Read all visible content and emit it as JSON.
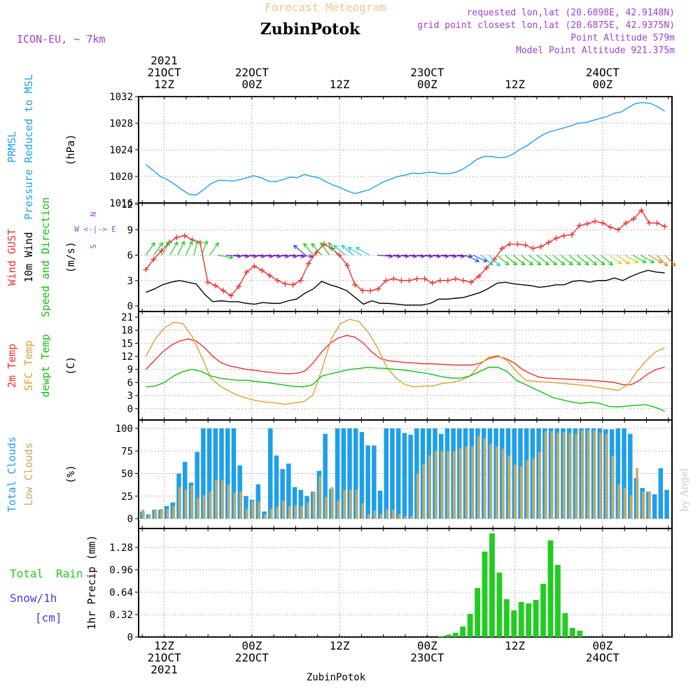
{
  "header": {
    "model": "ICON-EU, ~ 7km",
    "subtitle": "Forecast Meteogram",
    "station": "ZubinPotok",
    "requested": "requested lon,lat (20.6898E, 42.9148N)",
    "closest": "grid point closest lon,lat (20.6875E, 42.9375N)",
    "altitude": "Point Altitude 579m",
    "model_altitude": "Model Point Altitude 921.375m",
    "credit": "by Angel",
    "footer_station": "ZubinPotok"
  },
  "colors": {
    "pressure": "#1E9FEB",
    "gust": "#F03030",
    "wind": "#000000",
    "temp2m": "#F03030",
    "sfc": "#E0A030",
    "dewpt": "#10C010",
    "cloud_total": "#1E9FEB",
    "cloud_low": "#C8A860",
    "rain": "#22CC22",
    "snow": "#4040E0",
    "purple": "#A040D0",
    "grid": "#888888",
    "frame": "#000000"
  },
  "time_axis": {
    "top_labels": [
      {
        "h": 12,
        "lines": [
          "2021",
          "21OCT",
          "12Z"
        ]
      },
      {
        "h": 24,
        "lines": [
          "22OCT",
          "00Z"
        ]
      },
      {
        "h": 36,
        "lines": [
          "12Z"
        ]
      },
      {
        "h": 48,
        "lines": [
          "23OCT",
          "00Z"
        ]
      },
      {
        "h": 60,
        "lines": [
          "12Z"
        ]
      },
      {
        "h": 72,
        "lines": [
          "24OCT",
          "00Z"
        ]
      }
    ],
    "bottom_labels": [
      {
        "h": 12,
        "lines": [
          "12Z",
          "21OCT",
          "2021"
        ]
      },
      {
        "h": 24,
        "lines": [
          "00Z",
          "22OCT"
        ]
      },
      {
        "h": 36,
        "lines": [
          "12Z"
        ]
      },
      {
        "h": 48,
        "lines": [
          "00Z",
          "23OCT"
        ]
      },
      {
        "h": 60,
        "lines": [
          "12Z"
        ]
      },
      {
        "h": 72,
        "lines": [
          "00Z",
          "24OCT"
        ]
      }
    ]
  },
  "chart_data": [
    {
      "type": "line",
      "id": "pressure",
      "title": "PRMSL Pressure Reduced to MSL",
      "label_lines": [
        "PRMSL",
        "Pressure Reduced to MSL"
      ],
      "ylabel": "(hPa)",
      "ylim": [
        1016,
        1032
      ],
      "yticks": [
        1016,
        1020,
        1024,
        1028,
        1032
      ],
      "series": [
        {
          "name": "PRMSL",
          "values": [
            1021.8,
            1020.9,
            1020.0,
            1019.5,
            1018.8,
            1018.0,
            1017.3,
            1017.2,
            1018.0,
            1018.9,
            1019.4,
            1019.4,
            1019.3,
            1019.5,
            1019.8,
            1020.1,
            1019.8,
            1019.3,
            1019.2,
            1019.5,
            1019.9,
            1019.8,
            1020.3,
            1020.0,
            1019.8,
            1019.2,
            1018.7,
            1018.3,
            1017.8,
            1017.4,
            1017.7,
            1018.0,
            1018.6,
            1019.2,
            1019.6,
            1020.0,
            1020.2,
            1020.5,
            1020.4,
            1020.6,
            1020.6,
            1020.4,
            1020.4,
            1020.6,
            1021.1,
            1021.8,
            1022.6,
            1023.0,
            1023.0,
            1022.8,
            1022.9,
            1023.4,
            1024.1,
            1024.7,
            1025.5,
            1026.2,
            1026.7,
            1027.0,
            1027.3,
            1027.6,
            1028.0,
            1028.1,
            1028.4,
            1028.7,
            1029.0,
            1029.5,
            1029.7,
            1030.4,
            1031.0,
            1031.1,
            1031.0,
            1030.5,
            1029.8
          ]
        }
      ]
    },
    {
      "type": "line",
      "id": "wind",
      "title": "Wind GUST / 10m Wind Speed and Direction",
      "label_lines": [
        "Wind GUST",
        "10m Wind",
        "Speed and Direction"
      ],
      "ylabel": "(m/s)",
      "ylim": [
        0,
        12
      ],
      "yticks": [
        0,
        3,
        6,
        9,
        12
      ],
      "compass": [
        "N",
        "W <-|-> E",
        "S"
      ],
      "series": [
        {
          "name": "Wind GUST",
          "marker": "+",
          "values": [
            4.3,
            5.5,
            6.5,
            7.5,
            8.1,
            8.3,
            7.8,
            7.5,
            2.8,
            2.4,
            1.8,
            1.2,
            2.3,
            4.0,
            4.7,
            4.2,
            3.6,
            3.0,
            2.6,
            2.5,
            3.0,
            5.0,
            6.3,
            7.3,
            6.8,
            6.0,
            4.8,
            2.5,
            1.8,
            1.8,
            2.0,
            3.0,
            3.2,
            3.0,
            3.0,
            3.2,
            3.2,
            2.7,
            3.0,
            3.0,
            3.2,
            3.0,
            2.8,
            3.5,
            4.5,
            5.5,
            6.8,
            7.3,
            7.3,
            7.2,
            6.8,
            7.0,
            7.5,
            8.0,
            8.3,
            8.4,
            9.5,
            9.7,
            10.0,
            9.8,
            9.3,
            9.0,
            9.8,
            10.3,
            11.3,
            9.8,
            9.8,
            9.4
          ]
        },
        {
          "name": "10m Wind",
          "values": [
            1.6,
            2.0,
            2.5,
            2.8,
            3.0,
            2.8,
            2.6,
            1.4,
            0.5,
            0.6,
            0.5,
            0.5,
            0.3,
            0.2,
            0.4,
            0.3,
            0.3,
            0.6,
            0.8,
            1.5,
            2.0,
            2.9,
            2.5,
            2.2,
            1.8,
            1.0,
            0.2,
            0.6,
            0.3,
            0.3,
            0.2,
            0.1,
            0.1,
            0.1,
            0.3,
            0.8,
            0.8,
            0.9,
            1.0,
            1.3,
            1.6,
            2.1,
            2.7,
            2.8,
            2.6,
            2.5,
            2.4,
            2.2,
            2.3,
            2.5,
            2.5,
            2.9,
            3.0,
            2.8,
            3.0,
            3.0,
            3.3,
            3.0,
            3.5,
            3.9,
            4.2,
            4.0,
            3.9
          ]
        }
      ]
    },
    {
      "type": "line",
      "id": "temperature",
      "title": "2m Temp / SFC Temp / dewpt Temp",
      "label_lines": [
        "2m Temp",
        "SFC Temp",
        "dewpt Temp"
      ],
      "ylabel": "(C)",
      "ylim": [
        -1,
        21
      ],
      "yticks": [
        0,
        3,
        6,
        9,
        12,
        15,
        18,
        21
      ],
      "series": [
        {
          "name": "2m Temp",
          "values": [
            9,
            11,
            13,
            14.5,
            15.5,
            16,
            15.5,
            14,
            12,
            10.5,
            9.8,
            9.4,
            9,
            8.8,
            8.5,
            8.3,
            8.1,
            8,
            8.1,
            8.6,
            10.5,
            13,
            15,
            16.2,
            16.8,
            16.4,
            15,
            13,
            11.5,
            11,
            10.8,
            10.6,
            10.5,
            10.3,
            10.3,
            10.2,
            10.1,
            10,
            10,
            10,
            10.5,
            11.5,
            12,
            11.5,
            10.5,
            9,
            8,
            7.2,
            7,
            6.9,
            6.8,
            6.7,
            6.6,
            6.5,
            6.4,
            6.2,
            6,
            5.5,
            5.5,
            6.5,
            8,
            9,
            9.5
          ]
        },
        {
          "name": "SFC Temp",
          "values": [
            12,
            16,
            18.5,
            19.8,
            19.5,
            16.5,
            12,
            7,
            5.2,
            4,
            3,
            2.3,
            1.8,
            1.5,
            1.3,
            1,
            1.3,
            1.6,
            3,
            9,
            16,
            19.5,
            20.5,
            20,
            17.5,
            14,
            9.5,
            7,
            5.5,
            5,
            5.2,
            5.2,
            5.8,
            6,
            6.5,
            7.5,
            10,
            11.8,
            12.2,
            11,
            8.5,
            6.5,
            6.3,
            6.1,
            6,
            5.8,
            5.6,
            5.4,
            5.2,
            4.8,
            4.5,
            4.2,
            5.5,
            8.5,
            11,
            13,
            14
          ]
        },
        {
          "name": "dewpt Temp",
          "values": [
            5,
            5.2,
            6,
            7.5,
            8.5,
            9,
            8.5,
            7.5,
            7,
            6.7,
            6.5,
            6.5,
            6.2,
            6,
            5.7,
            5.4,
            5.1,
            5,
            5.5,
            7.5,
            8,
            8.5,
            9,
            9.2,
            9.5,
            9.3,
            9.2,
            9,
            8.8,
            8.5,
            8.2,
            7.8,
            7.3,
            7,
            7,
            7.5,
            8.5,
            9.5,
            9.5,
            8.5,
            6.5,
            5.5,
            4.5,
            3.5,
            2.5,
            2,
            1.5,
            1.2,
            1.5,
            1.2,
            0.5,
            0.4,
            0.6,
            0.8,
            0.9,
            0.3,
            -0.6
          ]
        }
      ]
    },
    {
      "type": "bar",
      "id": "clouds",
      "title": "Total Clouds / Low Clouds",
      "label_lines": [
        "Total Clouds",
        "Low Clouds"
      ],
      "ylabel": "(%)",
      "ylim": [
        0,
        100
      ],
      "yticks": [
        0,
        25,
        50,
        75,
        100
      ],
      "series": [
        {
          "name": "Total Clouds",
          "values": [
            8,
            5,
            10,
            10,
            14,
            18,
            50,
            63,
            40,
            74,
            100,
            100,
            100,
            100,
            100,
            100,
            59,
            25,
            21,
            38,
            8,
            100,
            70,
            55,
            61,
            35,
            32,
            25,
            30,
            53,
            94,
            33,
            100,
            100,
            100,
            100,
            96,
            81,
            81,
            31,
            100,
            100,
            100,
            95,
            93,
            100,
            100,
            100,
            100,
            94,
            100,
            100,
            100,
            100,
            100,
            100,
            100,
            100,
            100,
            100,
            100,
            100,
            100,
            100,
            100,
            100,
            100,
            100,
            100,
            100,
            100,
            100,
            100,
            100,
            100,
            100,
            99,
            99,
            100,
            100,
            94,
            45,
            34,
            30,
            27,
            56,
            32
          ]
        },
        {
          "name": "Low Clouds",
          "values": [
            10,
            5,
            10,
            11,
            11,
            14,
            35,
            32,
            37,
            23,
            26,
            30,
            43,
            43,
            38,
            29,
            30,
            11,
            20,
            19,
            5,
            11,
            13,
            20,
            14,
            15,
            14,
            18,
            30,
            47,
            24,
            35,
            20,
            32,
            32,
            32,
            17,
            5,
            9,
            5,
            10,
            10,
            5,
            3,
            3,
            50,
            60,
            70,
            75,
            75,
            75,
            75,
            78,
            80,
            80,
            92,
            89,
            83,
            80,
            77,
            70,
            60,
            58,
            65,
            67,
            74,
            97,
            97,
            95,
            96,
            95,
            94,
            98,
            98,
            98,
            95,
            94,
            69,
            38,
            34,
            26,
            56,
            30,
            30
          ]
        }
      ]
    },
    {
      "type": "bar",
      "id": "precip",
      "title": "1hr Precip",
      "label_lines": [
        "Total",
        "Rain",
        "Snow/1h",
        "[cm]"
      ],
      "ylabel": "1hr Precip (mm)",
      "ylim": [
        0,
        1.5
      ],
      "yticks": [
        0,
        0.32,
        0.64,
        0.96,
        1.28
      ],
      "ytick_labels": [
        "0",
        "0.32",
        "0.64",
        "0.96",
        "1.28"
      ],
      "series": [
        {
          "name": "Total Rain",
          "values": [
            0.01,
            0.03,
            0.06,
            0.15,
            0.33,
            0.7,
            1.22,
            1.48,
            0.92,
            0.54,
            0.38,
            0.5,
            0.48,
            0.53,
            0.76,
            1.38,
            1.03,
            0.34,
            0.13,
            0.09
          ]
        }
      ]
    }
  ]
}
